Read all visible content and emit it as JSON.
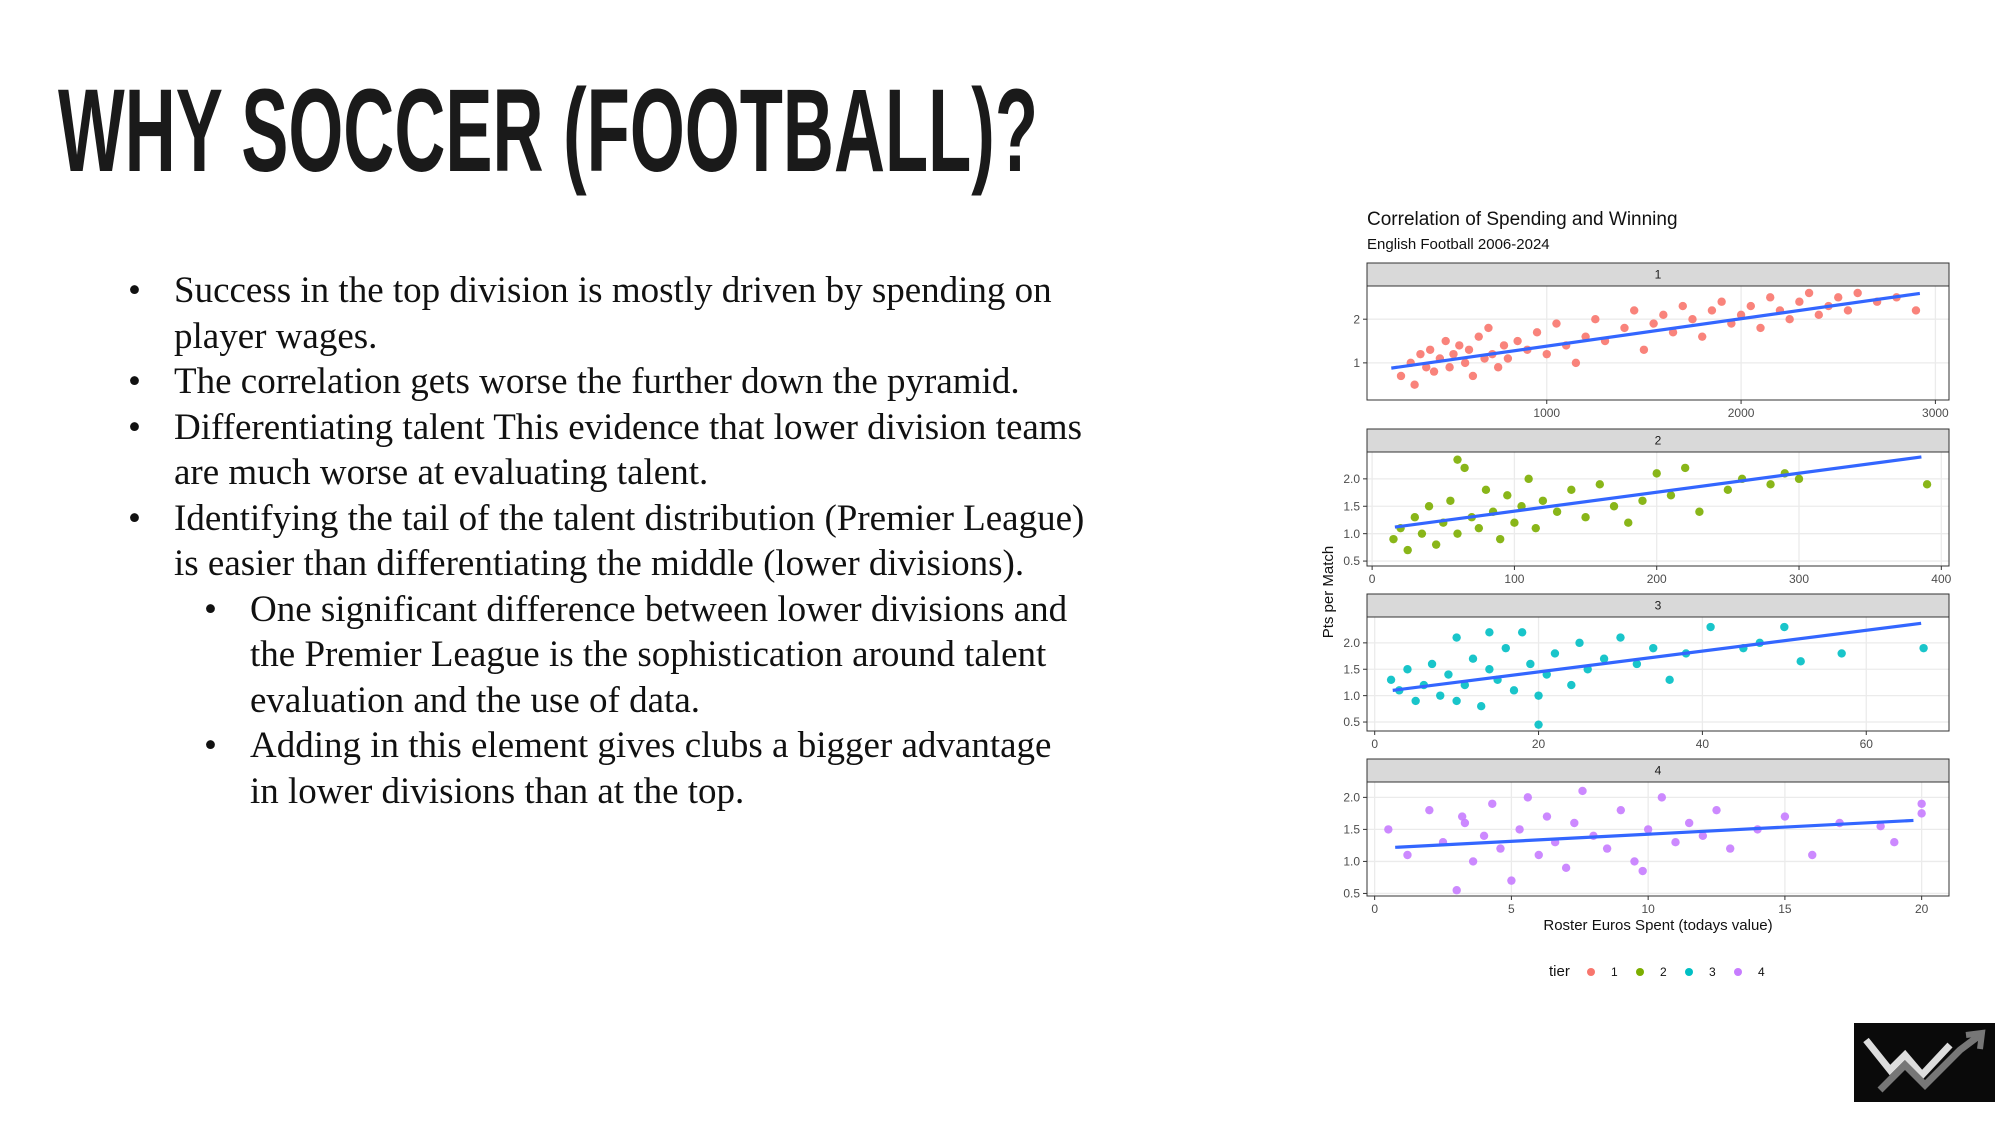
{
  "slide": {
    "title": "WHY SOCCER (FOOTBALL)?",
    "bullets": [
      {
        "text": "Success in the top division is mostly driven by spending on player wages.",
        "children": []
      },
      {
        "text": "The correlation gets worse the further down the pyramid.",
        "children": []
      },
      {
        "text": "Differentiating talent This evidence that lower division teams are much worse at evaluating talent.",
        "children": []
      },
      {
        "text": "Identifying the tail of the talent distribution (Premier League) is easier than differentiating the middle (lower divisions).",
        "children": [
          "One significant difference between lower divisions and the Premier League is the sophistication around talent evaluation and the use of data.",
          "Adding in this element gives clubs a bigger advantage in lower divisions than at the top."
        ]
      }
    ]
  },
  "figure": {
    "title": "Correlation of Spending and Winning",
    "subtitle": "English Football 2006-2024",
    "x_label": "Roster Euros Spent (todays value)",
    "y_label": "Pts per Match",
    "legend_title": "tier"
  },
  "chart_data": [
    {
      "type": "scatter",
      "grid": true,
      "xlim": [
        75,
        3070
      ],
      "ylim": [
        0.15,
        2.76
      ],
      "xticks": [
        1000,
        2000,
        3000
      ],
      "yticks": [
        1,
        2
      ],
      "series": [
        {
          "name": "1",
          "color": "#F8766D",
          "x": [
            250,
            300,
            320,
            350,
            380,
            400,
            420,
            450,
            480,
            500,
            520,
            550,
            580,
            600,
            620,
            650,
            680,
            700,
            720,
            750,
            780,
            800,
            850,
            900,
            950,
            1000,
            1050,
            1100,
            1150,
            1200,
            1250,
            1300,
            1400,
            1450,
            1500,
            1550,
            1600,
            1650,
            1700,
            1750,
            1800,
            1850,
            1900,
            1950,
            2000,
            2050,
            2100,
            2150,
            2200,
            2250,
            2300,
            2350,
            2400,
            2450,
            2500,
            2550,
            2600,
            2700,
            2800,
            2900
          ],
          "values": [
            0.7,
            1.0,
            0.5,
            1.2,
            0.9,
            1.3,
            0.8,
            1.1,
            1.5,
            0.9,
            1.2,
            1.4,
            1.0,
            1.3,
            0.7,
            1.6,
            1.1,
            1.8,
            1.2,
            0.9,
            1.4,
            1.1,
            1.5,
            1.3,
            1.7,
            1.2,
            1.9,
            1.4,
            1.0,
            1.6,
            2.0,
            1.5,
            1.8,
            2.2,
            1.3,
            1.9,
            2.1,
            1.7,
            2.3,
            2.0,
            1.6,
            2.2,
            2.4,
            1.9,
            2.1,
            2.3,
            1.8,
            2.5,
            2.2,
            2.0,
            2.4,
            2.6,
            2.1,
            2.3,
            2.5,
            2.2,
            2.6,
            2.4,
            2.5,
            2.2
          ]
        }
      ],
      "fit": {
        "color": "#3366FF",
        "x": [
          200,
          2920
        ],
        "values": [
          0.88,
          2.59
        ]
      }
    },
    {
      "type": "scatter",
      "grid": true,
      "xlim": [
        -3.6,
        405.4
      ],
      "ylim": [
        0.41,
        2.49
      ],
      "xticks": [
        0,
        100,
        200,
        300,
        400
      ],
      "yticks": [
        0.5,
        {
          "value": 1,
          "label": "1.0"
        },
        1.5,
        {
          "value": 2,
          "label": "2.0"
        }
      ],
      "series": [
        {
          "name": "2",
          "color": "#7CAE00",
          "x": [
            15,
            20,
            25,
            30,
            35,
            40,
            45,
            50,
            55,
            60,
            65,
            70,
            75,
            80,
            85,
            90,
            95,
            100,
            105,
            110,
            115,
            120,
            130,
            140,
            150,
            160,
            170,
            180,
            190,
            200,
            210,
            220,
            230,
            250,
            260,
            280,
            290,
            300,
            390,
            60
          ],
          "values": [
            0.9,
            1.1,
            0.7,
            1.3,
            1.0,
            1.5,
            0.8,
            1.2,
            1.6,
            1.0,
            2.2,
            1.3,
            1.1,
            1.8,
            1.4,
            0.9,
            1.7,
            1.2,
            1.5,
            2.0,
            1.1,
            1.6,
            1.4,
            1.8,
            1.3,
            1.9,
            1.5,
            1.2,
            1.6,
            2.1,
            1.7,
            2.2,
            1.4,
            1.8,
            2.0,
            1.9,
            2.1,
            2.0,
            1.9,
            2.35
          ]
        }
      ],
      "fit": {
        "color": "#3366FF",
        "x": [
          16,
          386
        ],
        "values": [
          1.12,
          2.4
        ]
      }
    },
    {
      "type": "scatter",
      "grid": true,
      "xlim": [
        -0.94,
        70.1
      ],
      "ylim": [
        0.33,
        2.49
      ],
      "xticks": [
        0,
        20,
        40,
        60
      ],
      "yticks": [
        0.5,
        {
          "value": 1,
          "label": "1.0"
        },
        1.5,
        {
          "value": 2,
          "label": "2.0"
        }
      ],
      "series": [
        {
          "name": "3",
          "color": "#00BFC4",
          "x": [
            2,
            3,
            4,
            5,
            6,
            7,
            8,
            9,
            10,
            11,
            12,
            13,
            14,
            15,
            16,
            17,
            18,
            19,
            20,
            21,
            22,
            24,
            25,
            26,
            28,
            30,
            32,
            34,
            36,
            38,
            41,
            45,
            47,
            50,
            52,
            57,
            67,
            20,
            10,
            14
          ],
          "values": [
            1.3,
            1.1,
            1.5,
            0.9,
            1.2,
            1.6,
            1.0,
            1.4,
            2.1,
            1.2,
            1.7,
            0.8,
            1.5,
            1.3,
            1.9,
            1.1,
            2.2,
            1.6,
            0.45,
            1.4,
            1.8,
            1.2,
            2.0,
            1.5,
            1.7,
            2.1,
            1.6,
            1.9,
            1.3,
            1.8,
            2.3,
            1.9,
            2.0,
            2.3,
            1.65,
            1.8,
            1.9,
            1.0,
            0.9,
            2.2
          ]
        }
      ],
      "fit": {
        "color": "#3366FF",
        "x": [
          2.2,
          66.7
        ],
        "values": [
          1.1,
          2.37
        ]
      }
    },
    {
      "type": "scatter",
      "grid": true,
      "xlim": [
        -0.28,
        21.0
      ],
      "ylim": [
        0.46,
        2.24
      ],
      "xticks": [
        0,
        5,
        10,
        15,
        20
      ],
      "yticks": [
        0.5,
        {
          "value": 1,
          "label": "1.0"
        },
        1.5,
        {
          "value": 2,
          "label": "2.0"
        }
      ],
      "series": [
        {
          "name": "4",
          "color": "#C77CFF",
          "x": [
            0.5,
            1.2,
            2,
            2.5,
            3,
            3.3,
            3.6,
            4,
            4.3,
            4.6,
            5,
            5.3,
            5.6,
            6,
            6.3,
            6.6,
            7,
            7.3,
            7.6,
            8,
            8.5,
            9,
            9.5,
            10,
            10.5,
            11,
            11.5,
            12,
            12.5,
            13,
            14,
            15,
            16,
            17,
            18.5,
            19,
            20,
            20,
            3.2,
            9.8
          ],
          "values": [
            1.5,
            1.1,
            1.8,
            1.3,
            0.55,
            1.6,
            1.0,
            1.4,
            1.9,
            1.2,
            0.7,
            1.5,
            2.0,
            1.1,
            1.7,
            1.3,
            0.9,
            1.6,
            2.1,
            1.4,
            1.2,
            1.8,
            1.0,
            1.5,
            2.0,
            1.3,
            1.6,
            1.4,
            1.8,
            1.2,
            1.5,
            1.7,
            1.1,
            1.6,
            1.55,
            1.3,
            1.9,
            1.75,
            1.7,
            0.85
          ]
        }
      ],
      "fit": {
        "color": "#3366FF",
        "x": [
          0.75,
          19.7
        ],
        "values": [
          1.22,
          1.64
        ]
      }
    }
  ]
}
